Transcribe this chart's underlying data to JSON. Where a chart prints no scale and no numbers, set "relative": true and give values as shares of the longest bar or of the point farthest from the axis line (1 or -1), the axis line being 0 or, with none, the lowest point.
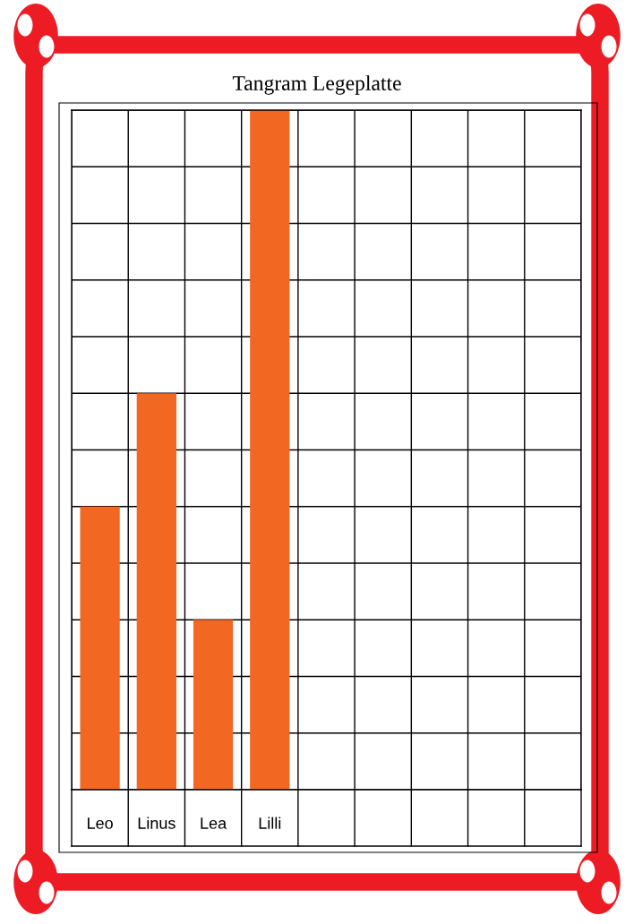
{
  "chart_data": {
    "type": "bar",
    "title": "Tangram Legeplatte",
    "categories": [
      "Leo",
      "Linus",
      "Lea",
      "Lilli",
      null,
      null,
      null,
      null,
      null
    ],
    "values": [
      0.4167,
      0.5833,
      0.25,
      1,
      0,
      0,
      0,
      0,
      0
    ],
    "color": "#f26722",
    "relative": true,
    "grid": true
  }
}
